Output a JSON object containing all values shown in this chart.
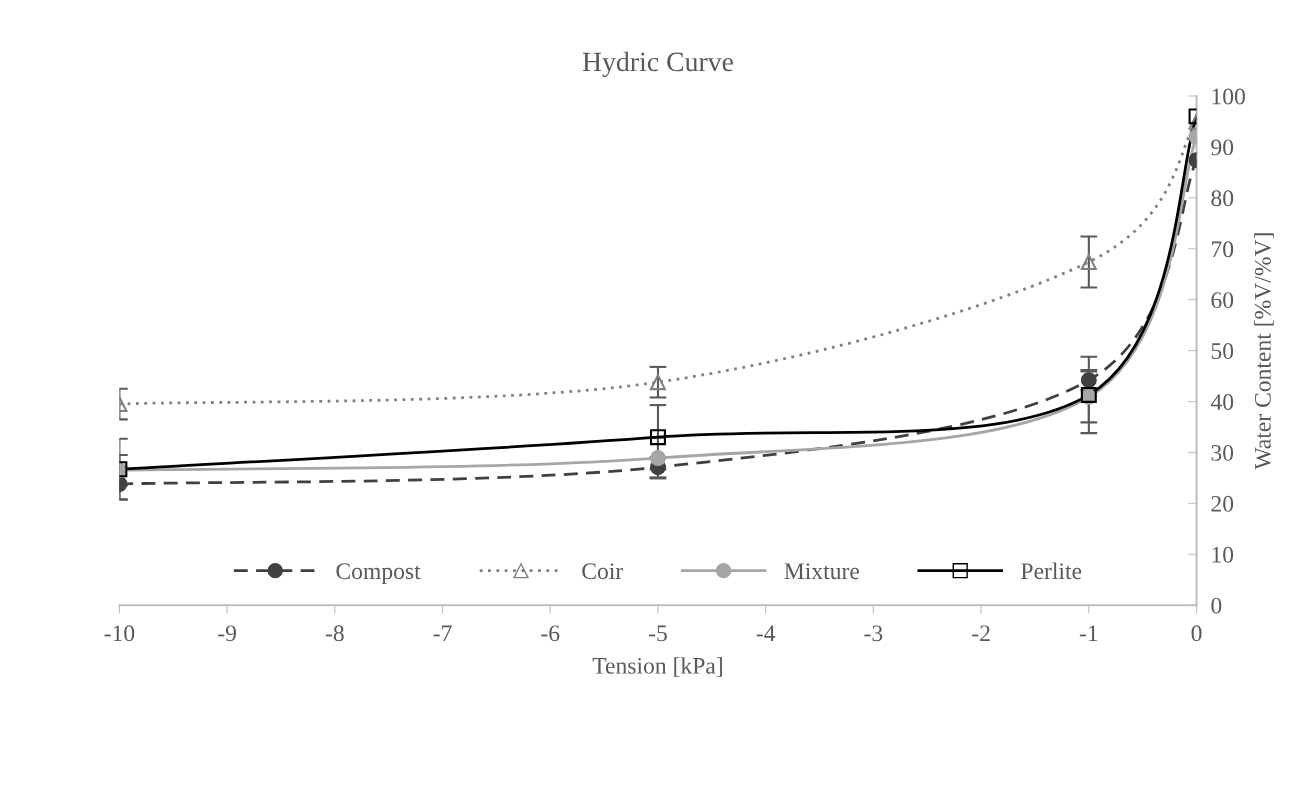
{
  "chart_data": {
    "type": "line",
    "title": "Hydric Curve",
    "xlabel": "Tension [kPa]",
    "ylabel": "Water Content [%V/%V]",
    "x": [
      -10,
      -5,
      -1,
      0
    ],
    "series": [
      {
        "name": "Compost",
        "color": "#404040",
        "line_style": "dashed",
        "marker": "circle",
        "values": [
          23.8,
          27.1,
          44.2,
          87.4
        ],
        "errors": [
          3,
          2,
          2,
          null
        ]
      },
      {
        "name": "Coir",
        "color": "#808080",
        "line_style": "dotted",
        "marker": "triangle",
        "values": [
          39.5,
          43.8,
          67.4,
          95
        ],
        "errors": [
          3,
          3,
          5,
          null
        ]
      },
      {
        "name": "Mixture",
        "color": "#a6a6a6",
        "line_style": "solid",
        "marker": "circle",
        "values": [
          26.5,
          28.9,
          40.9,
          92
        ],
        "errors": [
          3,
          4,
          5,
          null
        ]
      },
      {
        "name": "Perlite",
        "color": "#000000",
        "line_style": "solid",
        "marker": "square",
        "values": [
          26.7,
          33,
          41.3,
          96
        ],
        "errors": [
          6,
          6.3,
          7.5,
          null
        ]
      }
    ],
    "xlim": [
      -10,
      0
    ],
    "xticks": [
      -10,
      -9,
      -8,
      -7,
      -6,
      -5,
      -4,
      -3,
      -2,
      -1,
      0
    ],
    "ylim": [
      0,
      100
    ],
    "yticks": [
      0,
      10,
      20,
      30,
      40,
      50,
      60,
      70,
      80,
      90,
      100
    ],
    "grid": false,
    "legend": "bottom"
  }
}
